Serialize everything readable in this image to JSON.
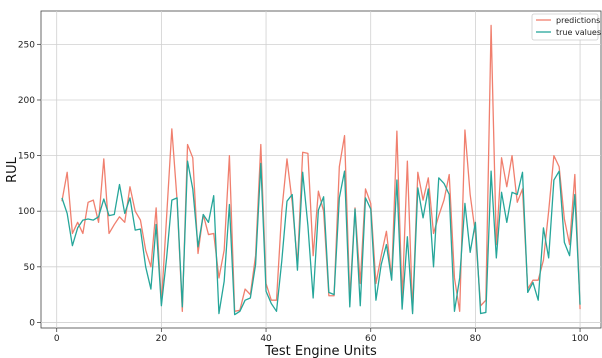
{
  "chart_data": {
    "type": "line",
    "xlabel": "Test Engine Units",
    "ylabel": "RUL",
    "xlim": [
      -3,
      104
    ],
    "ylim": [
      -5,
      280
    ],
    "xticks": [
      0,
      20,
      40,
      60,
      80,
      100
    ],
    "yticks": [
      0,
      50,
      100,
      150,
      200,
      250
    ],
    "grid": true,
    "legend_position": "top-right",
    "x": [
      1,
      2,
      3,
      4,
      5,
      6,
      7,
      8,
      9,
      10,
      11,
      12,
      13,
      14,
      15,
      16,
      17,
      18,
      19,
      20,
      21,
      22,
      23,
      24,
      25,
      26,
      27,
      28,
      29,
      30,
      31,
      32,
      33,
      34,
      35,
      36,
      37,
      38,
      39,
      40,
      41,
      42,
      43,
      44,
      45,
      46,
      47,
      48,
      49,
      50,
      51,
      52,
      53,
      54,
      55,
      56,
      57,
      58,
      59,
      60,
      61,
      62,
      63,
      64,
      65,
      66,
      67,
      68,
      69,
      70,
      71,
      72,
      73,
      74,
      75,
      76,
      77,
      78,
      79,
      80,
      81,
      82,
      83,
      84,
      85,
      86,
      87,
      88,
      89,
      90,
      91,
      92,
      93,
      94,
      95,
      96,
      97,
      98,
      99,
      100
    ],
    "series": [
      {
        "name": "predictions",
        "color": "#f07f6e",
        "values": [
          109,
          135,
          80,
          90,
          80,
          108,
          110,
          90,
          147,
          80,
          88,
          95,
          90,
          122,
          100,
          92,
          65,
          50,
          103,
          17,
          95,
          174,
          110,
          10,
          160,
          148,
          62,
          97,
          79,
          80,
          40,
          65,
          150,
          10,
          11,
          30,
          25,
          60,
          160,
          35,
          20,
          20,
          100,
          147,
          108,
          52,
          153,
          152,
          60,
          118,
          100,
          24,
          24,
          140,
          168,
          22,
          103,
          35,
          120,
          107,
          35,
          60,
          82,
          40,
          172,
          20,
          145,
          10,
          135,
          110,
          130,
          80,
          96,
          110,
          133,
          40,
          10,
          173,
          115,
          80,
          15,
          20,
          267,
          70,
          148,
          122,
          150,
          108,
          120,
          30,
          38,
          38,
          56,
          100,
          150,
          140,
          93,
          70,
          133,
          12
        ]
      },
      {
        "name": "true values",
        "color": "#26a69a",
        "values": [
          112,
          98,
          69,
          85,
          92,
          93,
          92,
          95,
          111,
          96,
          97,
          124,
          98,
          112,
          83,
          84,
          50,
          30,
          88,
          15,
          58,
          110,
          112,
          14,
          145,
          120,
          68,
          97,
          90,
          114,
          8,
          37,
          106,
          7,
          10,
          20,
          22,
          52,
          143,
          28,
          17,
          10,
          55,
          109,
          115,
          47,
          135,
          87,
          22,
          101,
          113,
          27,
          25,
          112,
          136,
          14,
          102,
          15,
          112,
          102,
          20,
          52,
          70,
          38,
          128,
          12,
          77,
          8,
          121,
          94,
          120,
          50,
          130,
          125,
          115,
          10,
          40,
          107,
          63,
          90,
          8,
          9,
          136,
          58,
          117,
          90,
          117,
          115,
          135,
          27,
          36,
          20,
          85,
          58,
          128,
          136,
          72,
          60,
          115,
          16
        ]
      }
    ]
  }
}
